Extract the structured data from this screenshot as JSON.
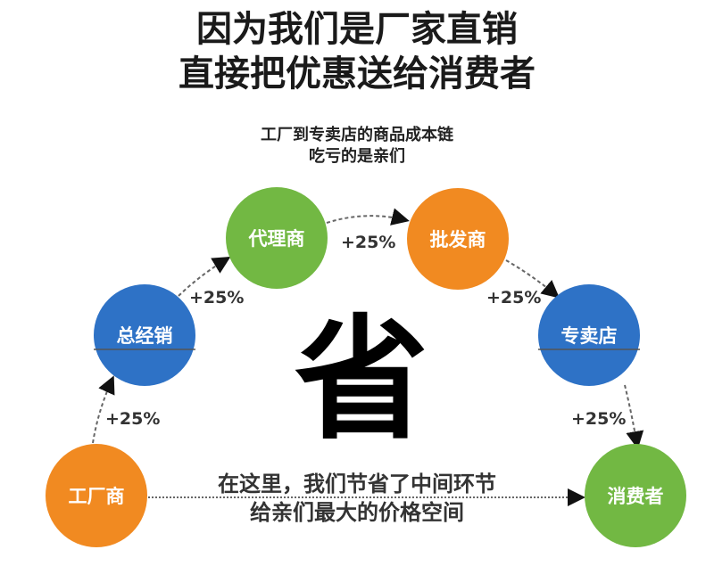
{
  "headline": [
    "因为我们是厂家直销",
    "直接把优惠送给消费者"
  ],
  "subtitle": [
    "工厂到专卖店的商品成本链",
    "吃亏的是亲们"
  ],
  "center_char": "省",
  "nodes": [
    {
      "label": "工厂商",
      "color": "#f18a21"
    },
    {
      "label": "总经销",
      "color": "#2e72c6"
    },
    {
      "label": "代理商",
      "color": "#72b843"
    },
    {
      "label": "批发商",
      "color": "#f18a21"
    },
    {
      "label": "专卖店",
      "color": "#2e72c6"
    },
    {
      "label": "消费者",
      "color": "#72b843"
    }
  ],
  "markups": [
    "+25%",
    "+25%",
    "+25%",
    "+25%",
    "+25%"
  ],
  "bottom_note": [
    "在这里，我们节省了中间环节",
    "给亲们最大的价格空间"
  ]
}
